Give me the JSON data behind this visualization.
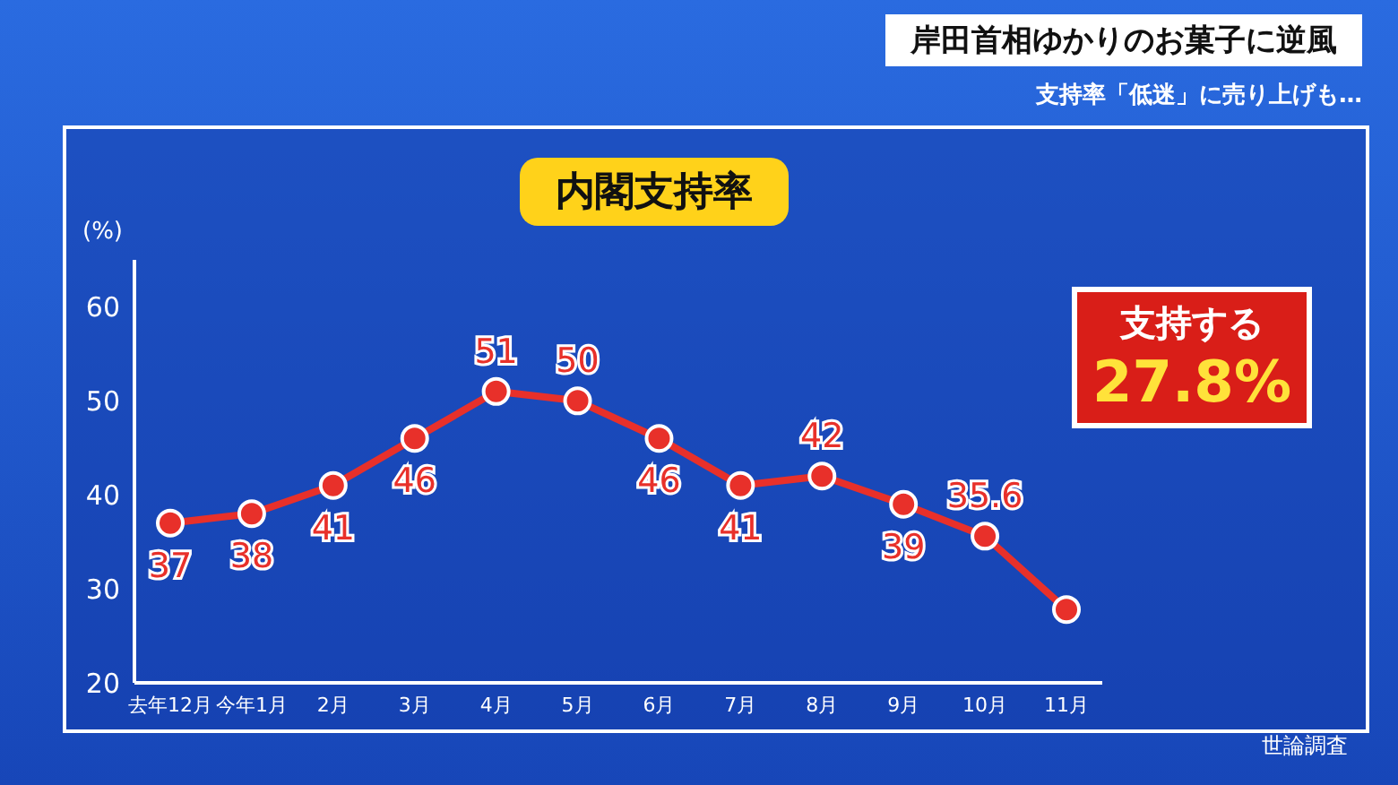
{
  "chart_data": {
    "type": "line",
    "title": "内閣支持率",
    "subtitle": "岸田首相ゆかりのお菓子に逆風",
    "annotations": [
      "支持率「低迷」に売り上げも…",
      "支持する",
      "27.8%",
      "世論調査"
    ],
    "ylabel": "(%)",
    "categories": [
      "去年12月",
      "今年1月",
      "2月",
      "3月",
      "4月",
      "5月",
      "6月",
      "7月",
      "8月",
      "9月",
      "10月",
      "11月"
    ],
    "series": [
      {
        "color": "#e8302a",
        "values": [
          37,
          38,
          41,
          46,
          51,
          50,
          46,
          41,
          42,
          39,
          35.6,
          27.8
        ],
        "value_labels": [
          "37",
          "38",
          "41",
          "46",
          "51",
          "50",
          "46",
          "41",
          "42",
          "39",
          "35.6",
          null
        ]
      }
    ],
    "ylim": [
      20,
      65
    ],
    "yticks": [
      20,
      30,
      40,
      50,
      60
    ],
    "marker": "circle",
    "line_style": "solid"
  }
}
